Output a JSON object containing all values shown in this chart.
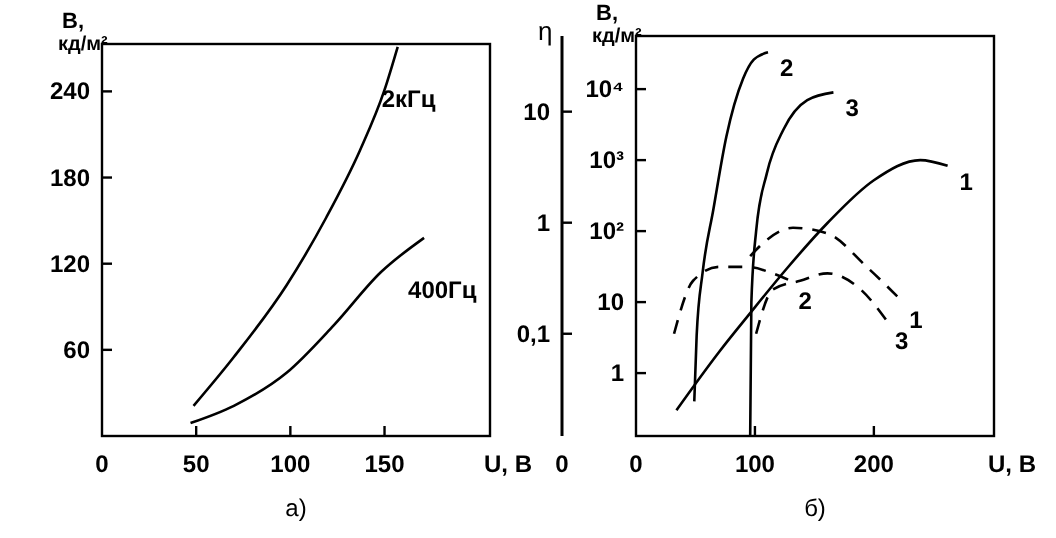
{
  "chart_data": [
    {
      "type": "line",
      "title": "а)",
      "xlabel": "U, В",
      "ylabel": "B, кд/м²",
      "xlim": [
        0,
        206
      ],
      "xticks": [
        0,
        50,
        100,
        150
      ],
      "ylim": [
        0,
        273
      ],
      "yticks": [
        60,
        120,
        180,
        240
      ],
      "marker": "none",
      "line_style": "solid",
      "series": [
        {
          "name": "2кГц",
          "color": "#000000",
          "x": [
            48.6,
            70,
            98,
            119,
            137,
            150,
            157
          ],
          "values": [
            21,
            55,
            105,
            152,
            199,
            241,
            271
          ]
        },
        {
          "name": "400Гц",
          "color": "#000000",
          "x": [
            47,
            70,
            98,
            123,
            148,
            171
          ],
          "values": [
            9,
            21,
            44,
            77,
            114,
            138
          ]
        }
      ]
    },
    {
      "type": "line",
      "ylabel": "η",
      "xlim": [
        0,
        301
      ],
      "ylim": [
        0.012,
        48
      ],
      "yticks": [
        {
          "value": 0.1,
          "label": "0,1"
        },
        1,
        10
      ],
      "log": true,
      "tick_labels": "y",
      "line_style": "dashed",
      "annotations": [
        "0"
      ],
      "series": [
        {
          "name": "1",
          "color": "#000000",
          "x": [
            96,
            110,
            132,
            161,
            194,
            223
          ],
          "values": [
            0.5,
            0.7,
            0.9,
            0.8,
            0.4,
            0.2
          ]
        },
        {
          "name": "2",
          "color": "#000000",
          "x": [
            32,
            48,
            70,
            93,
            115,
            130
          ],
          "values": [
            0.1,
            0.3,
            0.4,
            0.4,
            0.35,
            0.3
          ]
        },
        {
          "name": "3",
          "color": "#000000",
          "x": [
            101,
            115,
            138,
            161,
            189,
            211
          ],
          "values": [
            0.1,
            0.25,
            0.3,
            0.35,
            0.25,
            0.13
          ]
        }
      ]
    },
    {
      "type": "line",
      "title": "б)",
      "xlabel": "U, В",
      "ylabel": "B, кд/м²",
      "xlim": [
        0,
        301
      ],
      "xticks": [
        0,
        100,
        200
      ],
      "ylim": [
        0.13,
        56000
      ],
      "yticks": [
        1,
        10,
        {
          "value": 100,
          "label": "10²"
        },
        {
          "value": 1000,
          "label": "10³"
        },
        {
          "value": 10000,
          "label": "10⁴"
        }
      ],
      "log": true,
      "marker": "none",
      "line_style": "solid",
      "series": [
        {
          "name": "2",
          "color": "#000000",
          "x": [
            49,
            51,
            56,
            65,
            76,
            90,
            99,
            111
          ],
          "values": [
            0.4,
            3.4,
            26,
            200,
            2150,
            14000,
            26000,
            33000
          ]
        },
        {
          "name": "3",
          "color": "#000000",
          "x": [
            96,
            97,
            101,
            110,
            124,
            144,
            166
          ],
          "values": [
            0.13,
            10,
            100,
            650,
            2700,
            7000,
            9000
          ]
        },
        {
          "name": "1",
          "color": "#000000",
          "x": [
            34,
            70,
            96,
            127,
            161,
            200,
            239,
            262
          ],
          "values": [
            0.3,
            2,
            7,
            30,
            130,
            520,
            1000,
            830
          ]
        }
      ]
    }
  ]
}
